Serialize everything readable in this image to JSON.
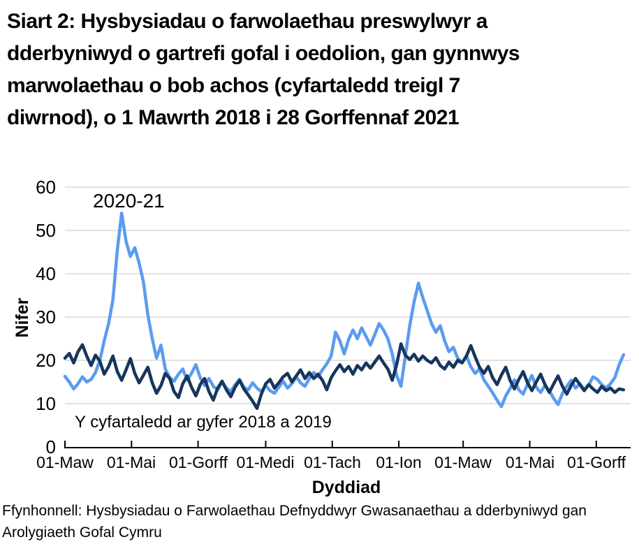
{
  "header": {
    "lines": [
      "Siart 2: Hysbysiadau o farwolaethau preswylwyr a",
      "dderbyniwyd o gartrefi gofal i oedolion, gan gynnwys",
      "marwolaethau o bob achos (cyfartaledd treigl 7",
      "diwrnod), o 1 Mawrth 2018 i 28 Gorffennaf 2021"
    ]
  },
  "chart_data": {
    "type": "line",
    "title": "Siart 2: Hysbysiadau o farwolaethau preswylwyr a dderbyniwyd o gartrefi gofal i oedolion, gan gynnwys marwolaethau o bob achos (cyfartaledd treigl 7 diwrnod), o 1 Mawrth 2018 i 28 Gorffennaf 2021",
    "xlabel": "Dyddiad",
    "ylabel": "Nifer",
    "ylim": [
      0,
      60
    ],
    "y_ticks": [
      0,
      10,
      20,
      30,
      40,
      50,
      60
    ],
    "x_tick_labels": [
      "01-Maw",
      "01-Mai",
      "01-Gorff",
      "01-Medi",
      "01-Tach",
      "01-Ion",
      "01-Maw",
      "01-Mai",
      "01-Gorff"
    ],
    "x_tick_days": [
      0,
      61,
      122,
      184,
      245,
      306,
      365,
      426,
      487
    ],
    "x_range_days": [
      0,
      514
    ],
    "grid": true,
    "gridline_color": "#d9d9d9",
    "axis_color": "#000000",
    "annotations": {
      "series_2020": "2020-21",
      "series_avg": "Y cyfartaledd ar gyfer 2018 a 2019"
    },
    "series": [
      {
        "name": "2020-21",
        "color": "#5b9bf0",
        "data_name": "series-2020-21-line",
        "day_start": 0,
        "day_step": 4,
        "values": [
          16.3,
          15,
          13.4,
          14.6,
          16.2,
          15,
          15.6,
          17.2,
          20,
          24.5,
          28.5,
          34,
          45.5,
          54,
          47.5,
          44,
          46,
          42.5,
          38,
          30.5,
          25,
          20.5,
          23.5,
          18,
          16,
          15.2,
          16.8,
          18,
          15.4,
          17,
          19,
          16,
          14.2,
          15.8,
          14,
          13.2,
          15,
          13.6,
          12.8,
          14.4,
          15.6,
          13.8,
          13.2,
          14.8,
          13.6,
          12.8,
          14.2,
          13,
          12.4,
          13.8,
          15.2,
          13.6,
          14.6,
          16.2,
          14.8,
          14,
          15.8,
          17.2,
          16.2,
          17.8,
          19.2,
          21,
          26.5,
          24.5,
          21.5,
          24.8,
          27,
          25,
          27.5,
          25.5,
          23.5,
          26,
          28.5,
          27,
          25,
          21.5,
          16.5,
          14,
          21,
          28,
          33.5,
          37.8,
          34.5,
          31.5,
          28.5,
          26.5,
          28,
          24.5,
          22,
          23,
          20.5,
          19.5,
          21,
          18.5,
          17,
          18,
          15.5,
          14,
          12.5,
          10.8,
          9.3,
          11.8,
          13.5,
          15.5,
          13.2,
          12.2,
          14.5,
          16.5,
          13.8,
          12.6,
          14.2,
          13,
          11.2,
          9.8,
          12.4,
          14,
          15.4,
          13.6,
          14.6,
          13.2,
          14.2,
          16.2,
          15.6,
          14.4,
          13.6,
          14.6,
          16,
          19,
          21.3
        ]
      },
      {
        "name": "Y cyfartaledd ar gyfer 2018 a 2019",
        "color": "#16365c",
        "data_name": "series-average-2018-2019-line",
        "day_start": 0,
        "day_step": 4,
        "values": [
          20.5,
          21.6,
          19.4,
          22,
          23.6,
          21,
          18.8,
          21.2,
          19.8,
          16.8,
          18.6,
          21,
          17.4,
          15.4,
          17.8,
          20.4,
          17,
          14.8,
          16.6,
          18.4,
          14.8,
          12.4,
          14.2,
          17,
          15.8,
          12.8,
          11.4,
          14.6,
          16.4,
          13.8,
          11.8,
          14.4,
          15.8,
          12.8,
          10.8,
          13.6,
          15.2,
          13.2,
          11.6,
          13.8,
          15.4,
          13.4,
          12,
          10.6,
          8.9,
          12.2,
          14.6,
          15.6,
          13.6,
          14.8,
          16.2,
          17,
          15,
          16.4,
          17.8,
          15.8,
          17.2,
          15.8,
          16.8,
          15.4,
          13.2,
          16,
          17.6,
          19,
          17.4,
          18.6,
          16.8,
          18.8,
          17.8,
          19.4,
          18.2,
          19.6,
          21,
          19.4,
          18,
          15.4,
          19,
          23.8,
          21.2,
          20.2,
          21.4,
          19.8,
          21,
          20,
          19.4,
          20.6,
          18.8,
          18,
          19.6,
          18.4,
          20,
          19.4,
          21,
          23.4,
          20.8,
          18.4,
          17,
          18.6,
          16,
          14.4,
          16.6,
          18.4,
          15.4,
          13.4,
          15.6,
          17.4,
          14.8,
          13,
          15,
          16.8,
          14.4,
          12.6,
          14.6,
          16.4,
          14,
          12.2,
          14.2,
          15.8,
          14.4,
          13,
          14.4,
          13.4,
          12.6,
          14,
          13,
          13.6,
          12.6,
          13.4,
          13.2
        ]
      }
    ]
  },
  "footer": {
    "lines": [
      "Ffynhonnell: Hysbysiadau o Farwolaethau Defnyddwyr Gwasanaethau a dderbyniwyd gan",
      "Arolygiaeth Gofal Cymru"
    ]
  }
}
